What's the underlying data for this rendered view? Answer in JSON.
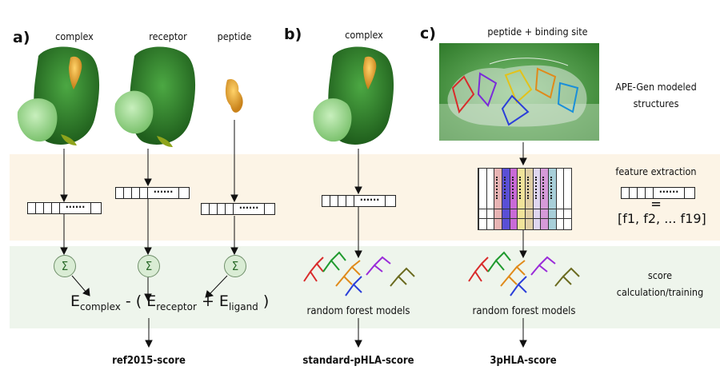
{
  "panels": {
    "a": "a)",
    "b": "b)",
    "c": "c)"
  },
  "headers": {
    "a_complex": "complex",
    "a_receptor": "receptor",
    "a_peptide": "peptide",
    "b_complex": "complex",
    "c_site": "peptide + binding site"
  },
  "side_labels": {
    "modeled_line1": "APE-Gen modeled",
    "modeled_line2": "structures",
    "feature_extraction": "feature extraction",
    "feature_equals": "=",
    "feature_list": "[f1, f2, ... f19]",
    "score_line1": "score",
    "score_line2": "calculation/training"
  },
  "sigma_symbol": "Σ",
  "equation": {
    "e": "E",
    "complex": "complex",
    "minus": " - ( ",
    "receptor": "receptor",
    "plus": " + ",
    "ligand": "ligand",
    "close": " )"
  },
  "rf_label_b": "random forest models",
  "rf_label_c": "random forest models",
  "vector_dots": "......",
  "results": {
    "a": "ref2015-score",
    "b": "standard-pHLA-score",
    "c": "3pHLA-score"
  },
  "colors": {
    "complex_green": "#2f7d2a",
    "light_green": "#a6d99a",
    "peptide_orange": "#e3a12a",
    "band_feature": "#fcf4e6",
    "band_score": "#eef5ec",
    "matrix_columns": [
      "#e8b4b4",
      "#5a4fd6",
      "#c96ad6",
      "#f0e39a",
      "#e0cfa6",
      "#dfd6f0",
      "#d69ad9",
      "#a8cfd9"
    ],
    "tree_colors": [
      "#d92b2b",
      "#1f9a2e",
      "#e08a1a",
      "#2b3fd9",
      "#9a2bd9",
      "#6b6b20"
    ]
  }
}
